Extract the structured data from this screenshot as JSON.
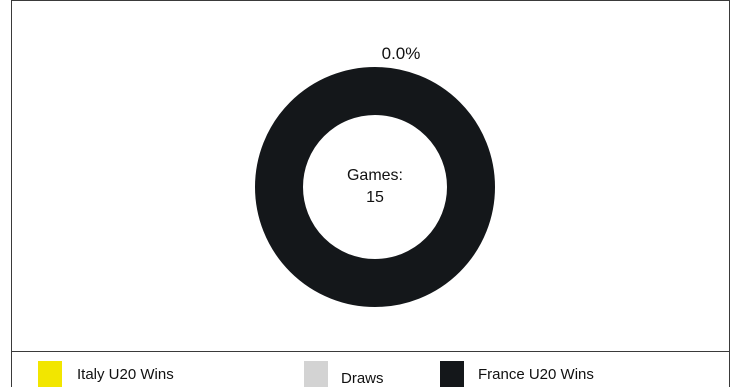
{
  "chart_data": {
    "type": "pie",
    "donut": true,
    "center_text": [
      "Games:",
      "15"
    ],
    "slices": [
      {
        "name": "Italy U20 Wins",
        "value": 0,
        "color": "#f2e600"
      },
      {
        "name": "Draws",
        "value": 0,
        "color": "#d3d3d3"
      },
      {
        "name": "France U20 Wins",
        "value": 15,
        "color": "#14171a"
      }
    ],
    "data_labels": [
      "0.0%"
    ],
    "legend_placement": "bottom"
  }
}
